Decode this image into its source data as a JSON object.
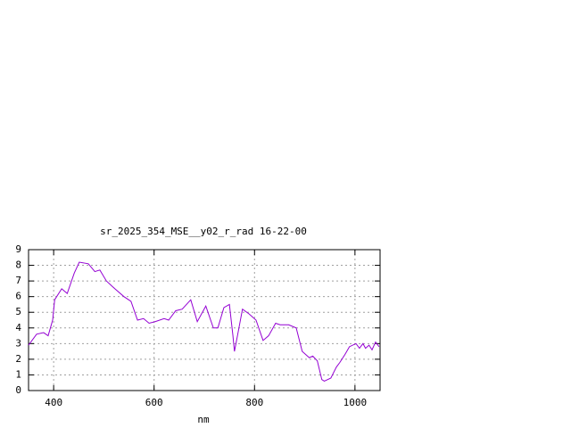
{
  "chart_data": {
    "type": "line",
    "title": "sr_2025_354_MSE__y02_r_rad 16-22-00",
    "xlabel": "nm",
    "x": [
      350,
      366,
      380,
      389,
      398,
      402,
      416,
      427,
      441,
      451,
      469,
      482,
      492,
      505,
      522,
      540,
      554,
      567,
      579,
      590,
      602,
      620,
      629,
      643,
      656,
      673,
      686,
      703,
      718,
      727,
      739,
      750,
      757,
      760,
      766,
      776,
      789,
      803,
      817,
      828,
      842,
      851,
      868,
      883,
      895,
      909,
      916,
      925,
      934,
      939,
      952,
      963,
      970,
      980,
      989,
      1002,
      1009,
      1016,
      1021,
      1028,
      1034,
      1041,
      1048
    ],
    "series": [
      {
        "color": "#9400d3",
        "values": [
          2.9,
          3.6,
          3.7,
          3.5,
          4.5,
          5.8,
          6.5,
          6.2,
          7.5,
          8.2,
          8.1,
          7.6,
          7.7,
          7.0,
          6.5,
          6.0,
          5.7,
          4.5,
          4.6,
          4.3,
          4.4,
          4.6,
          4.5,
          5.1,
          5.2,
          5.8,
          4.4,
          5.4,
          4.0,
          4.0,
          5.3,
          5.5,
          3.5,
          2.5,
          3.5,
          5.2,
          4.9,
          4.5,
          3.2,
          3.5,
          4.3,
          4.2,
          4.2,
          4.0,
          2.5,
          2.1,
          2.2,
          1.9,
          0.7,
          0.6,
          0.8,
          1.5,
          1.8,
          2.3,
          2.8,
          3.0,
          2.7,
          3.0,
          2.7,
          2.9,
          2.6,
          3.1,
          2.8
        ]
      }
    ],
    "xlim": [
      350,
      1050
    ],
    "ylim": [
      0,
      9
    ],
    "xticks": [
      400,
      600,
      800,
      1000
    ],
    "yticks": [
      0,
      1,
      2,
      3,
      4,
      5,
      6,
      7,
      8,
      9
    ],
    "grid": true
  }
}
